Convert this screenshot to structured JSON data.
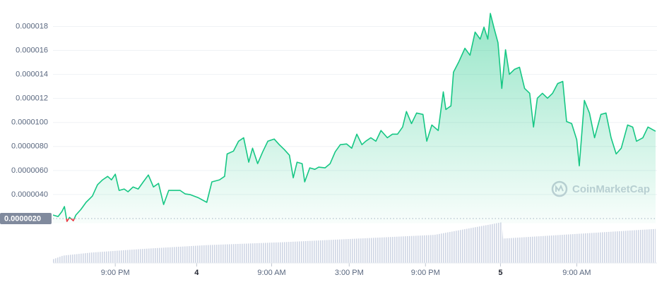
{
  "chart_data": {
    "type": "area",
    "xlim": [
      0,
      47.4
    ],
    "xticks": [
      {
        "value": 4.9,
        "label": "9:00 PM"
      },
      {
        "value": 11.3,
        "label": "4"
      },
      {
        "value": 17.2,
        "label": "9:00 AM"
      },
      {
        "value": 23.3,
        "label": "3:00 PM"
      },
      {
        "value": 29.3,
        "label": "9:00 PM"
      },
      {
        "value": 35.2,
        "label": "5"
      },
      {
        "value": 41.2,
        "label": "9:00 AM"
      }
    ],
    "ylim": [
      1.6e-06,
      2.02e-05
    ],
    "yticks": [
      1.8e-05,
      1.6e-05,
      1.4e-05,
      1.2e-05,
      {
        "value": 1e-05,
        "label": "0.0000100"
      },
      {
        "value": 8e-06,
        "label": "0.0000080"
      },
      {
        "value": 6e-06,
        "label": "0.0000060"
      },
      {
        "value": 4e-06,
        "label": "0.0000040"
      }
    ],
    "grid": true,
    "reference": {
      "value": 2e-06,
      "label": "0.0000020"
    },
    "watermark": "CoinMarketCap",
    "series": [
      {
        "color": "#16c784",
        "below_color": "#ea3943",
        "x": [
          0,
          0.4,
          0.7,
          0.9,
          1.1,
          1.3,
          1.6,
          1.8,
          2.2,
          2.6,
          3.1,
          3.5,
          3.9,
          4.3,
          4.6,
          4.9,
          5.2,
          5.6,
          5.9,
          6.3,
          6.7,
          7.1,
          7.5,
          7.9,
          8.3,
          8.7,
          9.1,
          9.4,
          10,
          10.4,
          10.8,
          11.4,
          12.1,
          12.5,
          13.1,
          13.5,
          13.7,
          14.2,
          14.6,
          15,
          15.4,
          15.7,
          16.1,
          16.5,
          16.9,
          17.4,
          17.8,
          18.2,
          18.6,
          18.9,
          19.2,
          19.6,
          19.8,
          20.2,
          20.6,
          20.9,
          21.4,
          21.8,
          22.2,
          22.6,
          23.1,
          23.5,
          23.9,
          24.3,
          24.6,
          25,
          25.4,
          25.8,
          26.3,
          26.7,
          27.1,
          27.5,
          27.8,
          28.2,
          28.6,
          29.1,
          29.4,
          29.8,
          30.3,
          30.7,
          30.9,
          31.3,
          31.5,
          31.9,
          32.4,
          32.8,
          33.2,
          33.6,
          33.9,
          34.2,
          34.4,
          34.7,
          35,
          35.3,
          35.6,
          35.9,
          36.3,
          36.7,
          37.1,
          37.5,
          37.8,
          38.1,
          38.5,
          38.9,
          39.3,
          39.7,
          40.1,
          40.4,
          40.8,
          41.2,
          41.4,
          41.8,
          42.2,
          42.6,
          43.1,
          43.5,
          43.9,
          44.3,
          44.7,
          45.2,
          45.6,
          45.9,
          46.4,
          46.8,
          47.4
        ],
        "values": [
          2.29e-06,
          2.17e-06,
          2.58e-06,
          3e-06,
          1.76e-06,
          2.1e-06,
          1.82e-06,
          2.29e-06,
          2.76e-06,
          3.35e-06,
          3.87e-06,
          4.81e-06,
          5.22e-06,
          5.51e-06,
          5.22e-06,
          5.69e-06,
          4.34e-06,
          4.46e-06,
          4.23e-06,
          4.63e-06,
          4.46e-06,
          5.05e-06,
          5.63e-06,
          4.63e-06,
          4.93e-06,
          3.17e-06,
          4.34e-06,
          4.34e-06,
          4.34e-06,
          4.05e-06,
          3.99e-06,
          3.75e-06,
          3.35e-06,
          5.05e-06,
          5.22e-06,
          5.51e-06,
          7.38e-06,
          7.62e-06,
          8.44e-06,
          8.73e-06,
          6.69e-06,
          7.86e-06,
          6.57e-06,
          7.56e-06,
          8.44e-06,
          8.62e-06,
          8.15e-06,
          7.74e-06,
          7.27e-06,
          5.39e-06,
          6.69e-06,
          6.57e-06,
          5.05e-06,
          6.22e-06,
          6.1e-06,
          6.28e-06,
          6.22e-06,
          6.57e-06,
          7.56e-06,
          8.15e-06,
          8.21e-06,
          7.86e-06,
          9.03e-06,
          8.15e-06,
          8.44e-06,
          8.73e-06,
          8.44e-06,
          9.33e-06,
          8.73e-06,
          9.03e-06,
          9.03e-06,
          9.62e-06,
          1.091e-05,
          9.91e-06,
          1.079e-05,
          1.067e-05,
          8.44e-06,
          9.79e-06,
          9.33e-06,
          1.255e-05,
          1.108e-05,
          1.138e-05,
          1.419e-05,
          1.501e-05,
          1.618e-05,
          1.56e-05,
          1.753e-05,
          1.694e-05,
          1.794e-05,
          1.694e-05,
          1.908e-05,
          1.782e-05,
          1.665e-05,
          1.284e-05,
          1.606e-05,
          1.401e-05,
          1.442e-05,
          1.46e-05,
          1.284e-05,
          1.243e-05,
          9.62e-06,
          1.202e-05,
          1.243e-05,
          1.202e-05,
          1.243e-05,
          1.324e-05,
          1.342e-05,
          1.008e-05,
          9.91e-06,
          8.56e-06,
          6.39e-06,
          1.184e-05,
          1.079e-05,
          8.73e-06,
          1.067e-05,
          1.079e-05,
          8.73e-06,
          7.38e-06,
          7.86e-06,
          9.79e-06,
          9.62e-06,
          8.44e-06,
          8.73e-06,
          9.62e-06,
          9.27e-06
        ]
      }
    ],
    "volume": {
      "color": "#cfd6e4",
      "ylim": [
        0,
        60
      ],
      "x": [
        0,
        0.8,
        3,
        7,
        12,
        18,
        24,
        30,
        35.3,
        35.4,
        40,
        47.4
      ],
      "values": [
        5,
        10,
        14,
        19,
        24,
        28,
        33,
        38,
        55,
        33,
        38,
        46
      ]
    }
  }
}
